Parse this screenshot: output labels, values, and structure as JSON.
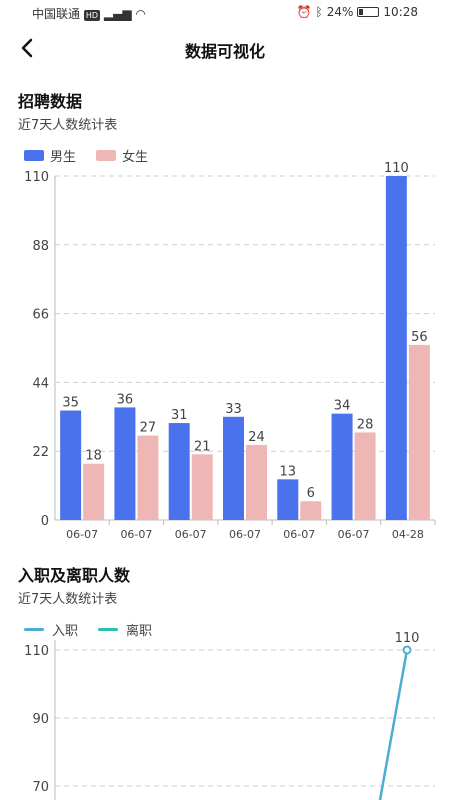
{
  "status_bar": {
    "carrier": "中国联通",
    "network_badge": "HD",
    "battery": "24%",
    "battery_level": 0.24,
    "time": "10:28"
  },
  "nav": {
    "title": "数据可视化"
  },
  "recruit_section": {
    "title": "招聘数据",
    "subtitle": "近7天人数统计表"
  },
  "staff_section": {
    "title": "入职及离职人数",
    "subtitle": "近7天人数统计表"
  },
  "colors": {
    "male": "#4a72ec",
    "female": "#efb6b6",
    "onboard": "#4aaed3",
    "resign": "#26c1b2"
  },
  "chart_data": [
    {
      "type": "bar",
      "categories": [
        "06-07",
        "06-07",
        "06-07",
        "06-07",
        "06-07",
        "06-07",
        "04-28"
      ],
      "series": [
        {
          "name": "男生",
          "values": [
            35,
            36,
            31,
            33,
            13,
            34,
            110
          ]
        },
        {
          "name": "女生",
          "values": [
            18,
            27,
            21,
            24,
            6,
            28,
            56
          ]
        }
      ],
      "yticks": [
        0,
        22,
        44,
        66,
        88,
        110
      ],
      "ylim": [
        0,
        110
      ],
      "grid": true,
      "legend_position": "top-left"
    },
    {
      "type": "line",
      "series": [
        {
          "name": "入职",
          "visible_points": [
            {
              "value": 110,
              "label": "110"
            }
          ]
        },
        {
          "name": "离职"
        }
      ],
      "yticks": [
        70,
        90,
        110
      ],
      "grid": true,
      "legend_position": "top-left"
    }
  ]
}
